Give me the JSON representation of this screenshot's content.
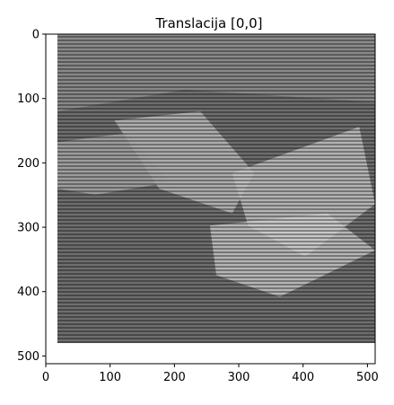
{
  "chart_data": {
    "type": "heatmap",
    "title": "Translacija [0,0]",
    "xlabel": "",
    "ylabel": "",
    "xlim": [
      0,
      512
    ],
    "ylim": [
      512,
      0
    ],
    "x_ticks": [
      0,
      100,
      200,
      300,
      400,
      500
    ],
    "y_ticks": [
      0,
      100,
      200,
      300,
      400,
      500
    ],
    "x_tick_labels": [
      "0",
      "100",
      "200",
      "300",
      "400",
      "500"
    ],
    "y_tick_labels": [
      "0",
      "100",
      "200",
      "300",
      "400",
      "500"
    ],
    "image_extent": {
      "x": [
        18,
        512
      ],
      "y": [
        0,
        480
      ]
    },
    "colormap": "gray",
    "grid": false,
    "description_content": "grayscale interlaced photo"
  }
}
